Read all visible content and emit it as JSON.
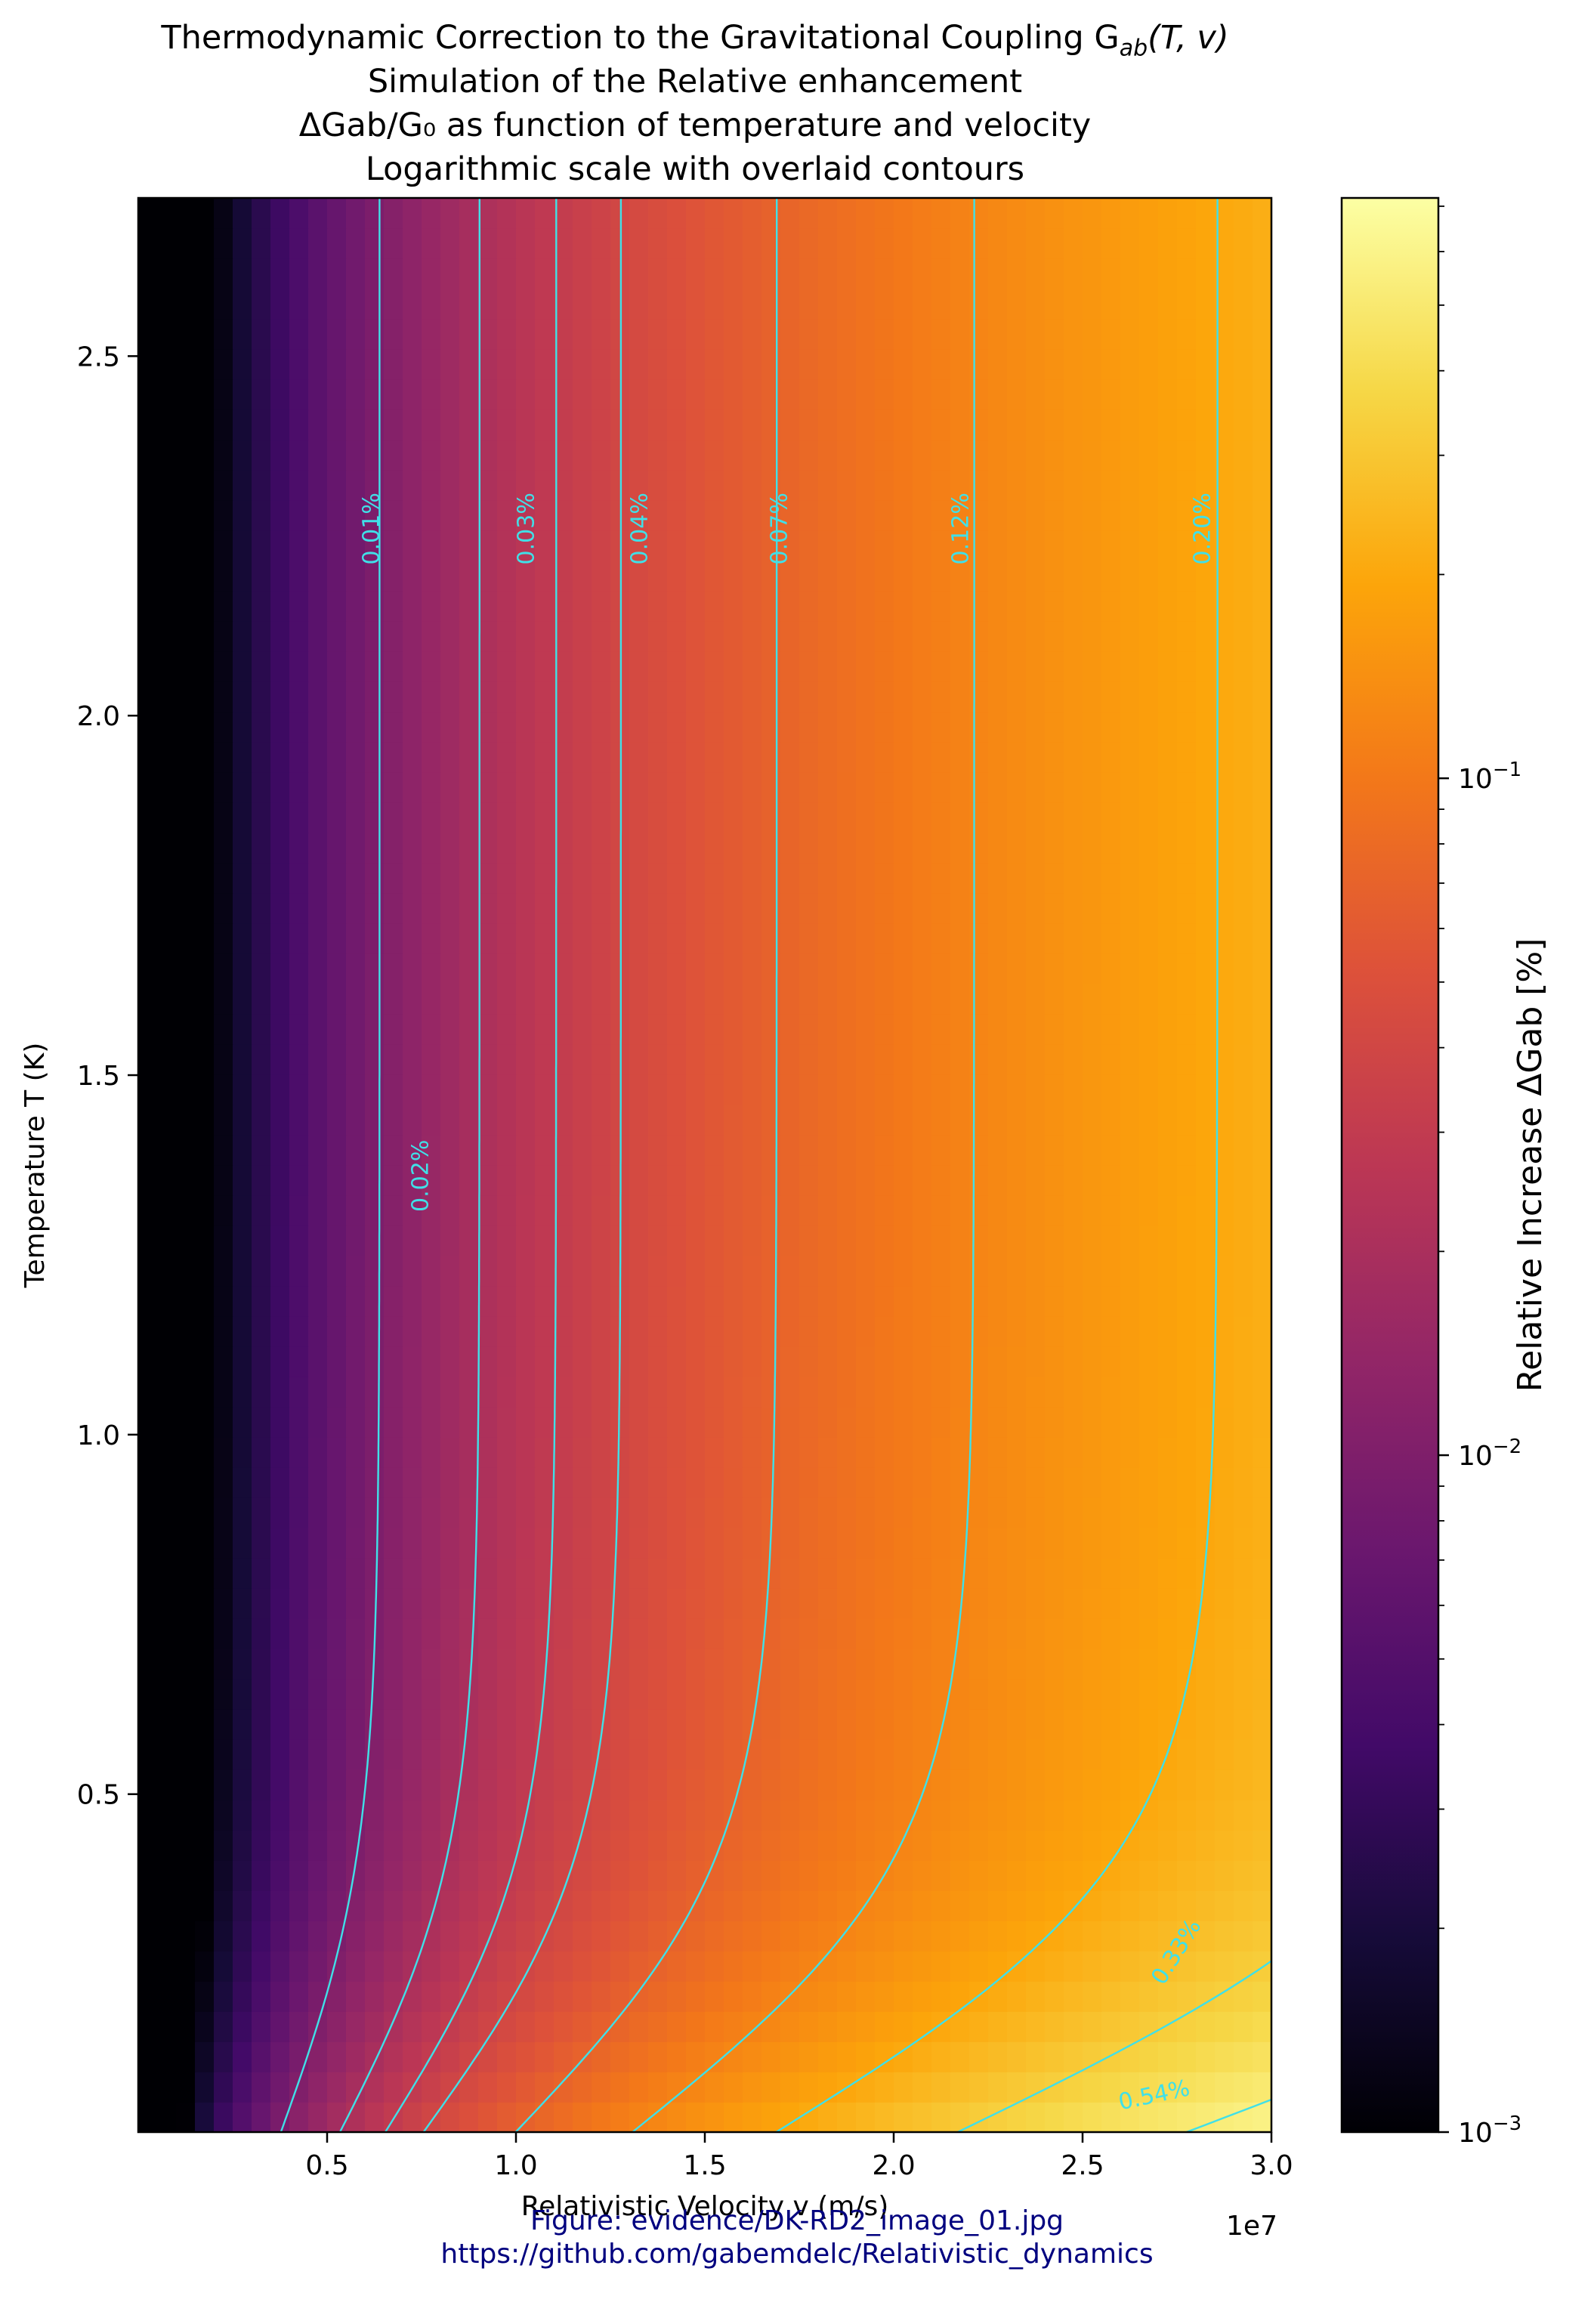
{
  "titles": [
    "Thermodynamic Correction to the Gravitational Coupling G",
    "Simulation of the Relative enhancement",
    "ΔGab/G₀ as function of temperature and velocity",
    "Logarithmic scale with overlaid contours"
  ],
  "title_math": {
    "sub": "ab",
    "args": "(T, v)"
  },
  "footer": [
    "Figure: evidence/DK-RD2_image_01.jpg",
    "https://github.com/gabemdelc/Relativistic_dynamics"
  ],
  "chart_data": {
    "type": "heatmap",
    "colormap": "inferno",
    "xlabel": "Relativistic Velocity v (m/s)",
    "x_offset_label": "1e7",
    "ylabel": "Temperature T (K)",
    "colorbar_label": "Relative Increase ΔGab [%]",
    "xlim": [
      0.0,
      3.0
    ],
    "ylim": [
      0.03,
      2.72
    ],
    "x_ticks": [
      0.5,
      1.0,
      1.5,
      2.0,
      2.5,
      3.0
    ],
    "x_tick_labels": [
      "0.5",
      "1.0",
      "1.5",
      "2.0",
      "2.5",
      "3.0"
    ],
    "y_ticks": [
      0.5,
      1.0,
      1.5,
      2.0,
      2.5
    ],
    "y_tick_labels": [
      "0.5",
      "1.0",
      "1.5",
      "2.0",
      "2.5"
    ],
    "colorbar_scale": "log",
    "colorbar_range": [
      0.001,
      0.72
    ],
    "colorbar_ticks": [
      0.001,
      0.01,
      0.1
    ],
    "colorbar_tick_base": "10",
    "colorbar_tick_exponents": [
      "−3",
      "−2",
      "−1"
    ],
    "contours": [
      {
        "level": 0.01,
        "label": "0.01%",
        "label_xy": [
          0.62,
          2.26
        ]
      },
      {
        "level": 0.02,
        "label": "0.02%",
        "label_xy": [
          0.75,
          1.36
        ]
      },
      {
        "level": 0.03,
        "label": "0.03%",
        "label_xy": [
          1.03,
          2.26
        ]
      },
      {
        "level": 0.04,
        "label": "0.04%",
        "label_xy": [
          1.33,
          2.26
        ]
      },
      {
        "level": 0.07,
        "label": "0.07%",
        "label_xy": [
          1.7,
          2.26
        ]
      },
      {
        "level": 0.12,
        "label": "0.12%",
        "label_xy": [
          2.18,
          2.26
        ]
      },
      {
        "level": 0.2,
        "label": "0.20%",
        "label_xy": [
          2.82,
          2.26
        ]
      },
      {
        "level": 0.33,
        "label": "0.33%",
        "label_xy": [
          2.75,
          0.28
        ]
      },
      {
        "level": 0.54,
        "label": "0.54%",
        "label_xy": [
          2.69,
          0.08
        ]
      }
    ],
    "contour_color": "#40e0e8",
    "grid": false
  }
}
